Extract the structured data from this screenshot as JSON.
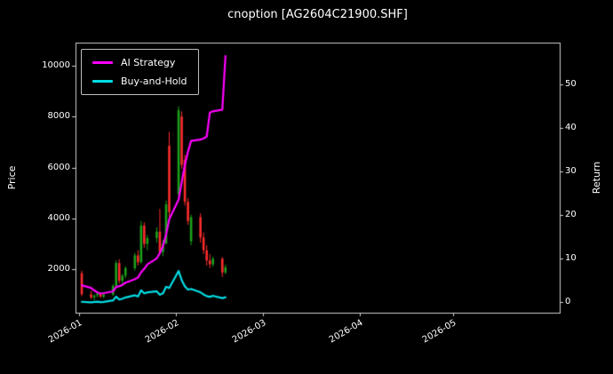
{
  "chart_data": {
    "type": "candlestick+line",
    "title": "cnoption [AG2604C21900.SHF]",
    "legend": [
      {
        "label": "AI Strategy",
        "color": "#ff00ff"
      },
      {
        "label": "Buy-and-Hold",
        "color": "#00dde6"
      }
    ],
    "colors": {
      "background": "#000000",
      "text": "#ffffff",
      "frame": "#cfcfcf",
      "up": "#1ba11b",
      "down": "#fb2c2c"
    },
    "x_axis": {
      "ticks": [
        "2026-01",
        "2026-02",
        "2026-03",
        "2026-04",
        "2026-05"
      ],
      "range": [
        "2025-12-31",
        "2026-06-04"
      ],
      "grid": false
    },
    "price_axis": {
      "label": "Price",
      "ticks": [
        "2000",
        "4000",
        "6000",
        "8000",
        "10000"
      ],
      "range": [
        300,
        10900
      ]
    },
    "return_axis": {
      "label": "Return",
      "ticks": [
        "0",
        "10",
        "20",
        "30",
        "40",
        "50"
      ],
      "range": [
        -2.5,
        59.6
      ]
    },
    "candles": [
      {
        "date": "2026-01-02",
        "open": 1850,
        "high": 1950,
        "low": 950,
        "close": 1020
      },
      {
        "date": "2026-01-05",
        "open": 1020,
        "high": 1150,
        "low": 830,
        "close": 900
      },
      {
        "date": "2026-01-06",
        "open": 900,
        "high": 1010,
        "low": 800,
        "close": 980
      },
      {
        "date": "2026-01-07",
        "open": 980,
        "high": 1120,
        "low": 900,
        "close": 1060
      },
      {
        "date": "2026-01-08",
        "open": 1060,
        "high": 1100,
        "low": 880,
        "close": 930
      },
      {
        "date": "2026-01-09",
        "open": 930,
        "high": 1060,
        "low": 870,
        "close": 1010
      },
      {
        "date": "2026-01-12",
        "open": 1010,
        "high": 1420,
        "low": 960,
        "close": 1350
      },
      {
        "date": "2026-01-13",
        "open": 1350,
        "high": 2350,
        "low": 1280,
        "close": 2250
      },
      {
        "date": "2026-01-14",
        "open": 2250,
        "high": 2400,
        "low": 1450,
        "close": 1550
      },
      {
        "date": "2026-01-15",
        "open": 1550,
        "high": 1820,
        "low": 1400,
        "close": 1750
      },
      {
        "date": "2026-01-16",
        "open": 1750,
        "high": 2120,
        "low": 1650,
        "close": 2050
      },
      {
        "date": "2026-01-19",
        "open": 2050,
        "high": 2650,
        "low": 1950,
        "close": 2550
      },
      {
        "date": "2026-01-20",
        "open": 2550,
        "high": 2750,
        "low": 2150,
        "close": 2280
      },
      {
        "date": "2026-01-21",
        "open": 2280,
        "high": 3900,
        "low": 2230,
        "close": 3720
      },
      {
        "date": "2026-01-22",
        "open": 3720,
        "high": 3850,
        "low": 2850,
        "close": 3000
      },
      {
        "date": "2026-01-23",
        "open": 3000,
        "high": 3350,
        "low": 2750,
        "close": 3230
      },
      {
        "date": "2026-01-26",
        "open": 3230,
        "high": 3650,
        "low": 3050,
        "close": 3480
      },
      {
        "date": "2026-01-27",
        "open": 3480,
        "high": 4380,
        "low": 2580,
        "close": 2680
      },
      {
        "date": "2026-01-28",
        "open": 2680,
        "high": 3150,
        "low": 2520,
        "close": 3020
      },
      {
        "date": "2026-01-29",
        "open": 3020,
        "high": 4700,
        "low": 2980,
        "close": 4550
      },
      {
        "date": "2026-01-30",
        "open": 6850,
        "high": 7400,
        "low": 4050,
        "close": 4250
      },
      {
        "date": "2026-02-02",
        "open": 4950,
        "high": 8400,
        "low": 4850,
        "close": 8250
      },
      {
        "date": "2026-02-03",
        "open": 8000,
        "high": 8200,
        "low": 5950,
        "close": 6100
      },
      {
        "date": "2026-02-04",
        "open": 6300,
        "high": 6500,
        "low": 4500,
        "close": 4650
      },
      {
        "date": "2026-02-05",
        "open": 4650,
        "high": 4800,
        "low": 3750,
        "close": 3900
      },
      {
        "date": "2026-02-06",
        "open": 3100,
        "high": 4150,
        "low": 2950,
        "close": 4050
      },
      {
        "date": "2026-02-09",
        "open": 4050,
        "high": 4200,
        "low": 3050,
        "close": 3250
      },
      {
        "date": "2026-02-10",
        "open": 3250,
        "high": 3450,
        "low": 2600,
        "close": 2750
      },
      {
        "date": "2026-02-11",
        "open": 2750,
        "high": 2950,
        "low": 2150,
        "close": 2350
      },
      {
        "date": "2026-02-12",
        "open": 2350,
        "high": 2600,
        "low": 2050,
        "close": 2200
      },
      {
        "date": "2026-02-13",
        "open": 2200,
        "high": 2500,
        "low": 2100,
        "close": 2420
      },
      {
        "date": "2026-02-16",
        "open": 2420,
        "high": 2480,
        "low": 1700,
        "close": 1880
      },
      {
        "date": "2026-02-17",
        "open": 1880,
        "high": 2180,
        "low": 1820,
        "close": 2080
      }
    ],
    "series": [
      {
        "name": "AI Strategy",
        "axis": "return",
        "color": "#ff00ff",
        "values": [
          3.8,
          3.2,
          2.6,
          2.2,
          1.9,
          2.0,
          2.4,
          3.4,
          3.6,
          3.9,
          4.4,
          5.2,
          5.6,
          6.8,
          7.6,
          8.6,
          10.0,
          11.2,
          12.8,
          15.5,
          19.0,
          23.5,
          27.5,
          31.5,
          34.5,
          37.0,
          37.3,
          37.6,
          38.0,
          43.5,
          43.8,
          44.2,
          56.5
        ]
      },
      {
        "name": "Buy-and-Hold",
        "axis": "return",
        "color": "#00dde6",
        "values": [
          0.0,
          -0.12,
          -0.04,
          0.04,
          -0.09,
          -0.01,
          0.32,
          1.21,
          0.52,
          0.72,
          1.01,
          1.5,
          1.24,
          2.65,
          1.94,
          2.17,
          2.41,
          1.63,
          1.96,
          3.46,
          3.17,
          7.09,
          4.98,
          3.56,
          2.82,
          2.97,
          2.19,
          1.7,
          1.3,
          1.16,
          1.37,
          0.84,
          1.04
        ]
      }
    ]
  }
}
